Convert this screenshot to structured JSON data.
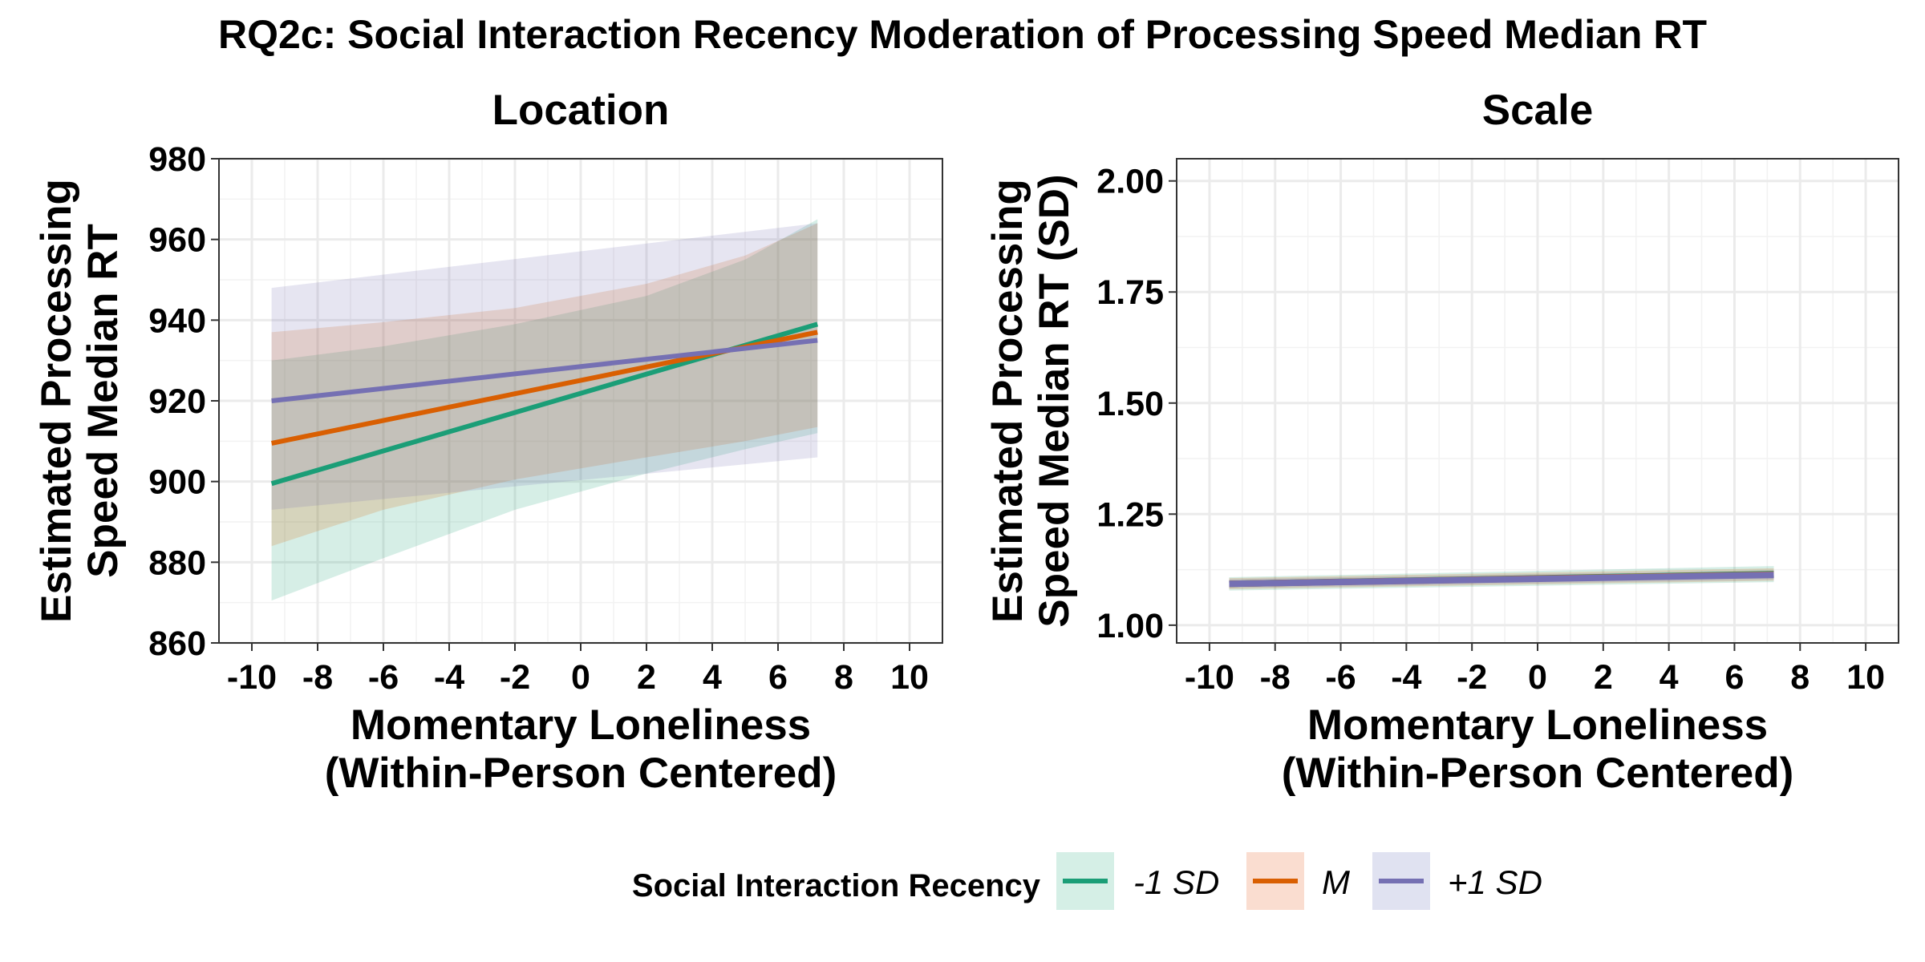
{
  "title": "RQ2c: Social Interaction Recency Moderation of Processing Speed Median RT",
  "legend": {
    "title": "Social Interaction Recency",
    "entries": [
      {
        "label": "-1 SD",
        "color": "#1B9E77",
        "fill": "#D5EFE6"
      },
      {
        "label": "M",
        "color": "#D95F02",
        "fill": "#FADDD0"
      },
      {
        "label": "+1 SD",
        "color": "#7570B3",
        "fill": "#E0E2F1"
      }
    ]
  },
  "chart_data": [
    {
      "type": "line",
      "panel": "Location",
      "title": "Location",
      "xlabel_lines": [
        "Momentary Loneliness",
        "(Within-Person Centered)"
      ],
      "ylabel_lines": [
        "Estimated Processing",
        "Speed Median RT"
      ],
      "xlim": [
        -11,
        11
      ],
      "ylim": [
        860,
        980
      ],
      "x_ticks": [
        -10,
        -8,
        -6,
        -4,
        -2,
        0,
        2,
        4,
        6,
        8,
        10
      ],
      "x_tick_labels": [
        "-10",
        "-8",
        "-6",
        "-4",
        "-2",
        "0",
        "2",
        "4",
        "6",
        "8",
        "10"
      ],
      "y_ticks": [
        860,
        880,
        900,
        920,
        940,
        960,
        980
      ],
      "y_tick_labels": [
        "860",
        "880",
        "900",
        "920",
        "940",
        "960",
        "980"
      ],
      "grid": true,
      "series": [
        {
          "name": "-1 SD",
          "x": [
            -9.4,
            7.2
          ],
          "y": [
            899.5,
            939
          ],
          "ribbon": {
            "x": [
              -9.4,
              -6,
              -2,
              2,
              5,
              7.2
            ],
            "lower": [
              870.5,
              881,
              893,
              902,
              908,
              912
            ],
            "upper": [
              930,
              933.5,
              939,
              946,
              955,
              965
            ]
          }
        },
        {
          "name": "M",
          "x": [
            -9.4,
            7.2
          ],
          "y": [
            909.5,
            937
          ],
          "ribbon": {
            "x": [
              -9.4,
              -6,
              -2,
              2,
              5,
              7.2
            ],
            "lower": [
              884,
              893,
              900.5,
              906,
              910,
              913.5
            ],
            "upper": [
              937,
              939.5,
              943,
              949,
              956,
              964
            ]
          }
        },
        {
          "name": "+1 SD",
          "x": [
            -9.4,
            7.2
          ],
          "y": [
            920,
            935
          ],
          "ribbon": {
            "x": [
              -9.4,
              7.2
            ],
            "lower": [
              893,
              906
            ],
            "upper": [
              948,
              964
            ]
          }
        }
      ]
    },
    {
      "type": "line",
      "panel": "Scale",
      "title": "Scale",
      "xlabel_lines": [
        "Momentary Loneliness",
        "(Within-Person Centered)"
      ],
      "ylabel_lines": [
        "Estimated Processing",
        "Speed Median RT (SD)"
      ],
      "xlim": [
        -11,
        11
      ],
      "ylim": [
        0.96,
        2.05
      ],
      "x_ticks": [
        -10,
        -8,
        -6,
        -4,
        -2,
        0,
        2,
        4,
        6,
        8,
        10
      ],
      "x_tick_labels": [
        "-10",
        "-8",
        "-6",
        "-4",
        "-2",
        "0",
        "2",
        "4",
        "6",
        "8",
        "10"
      ],
      "y_ticks": [
        1.0,
        1.25,
        1.5,
        1.75,
        2.0
      ],
      "y_tick_labels": [
        "1.00",
        "1.25",
        "1.50",
        "1.75",
        "2.00"
      ],
      "grid": true,
      "series": [
        {
          "name": "-1 SD",
          "x": [
            -9.4,
            7.2
          ],
          "y": [
            1.093,
            1.115
          ],
          "ribbon": {
            "x": [
              -9.4,
              7.2
            ],
            "lower": [
              1.078,
              1.097
            ],
            "upper": [
              1.108,
              1.133
            ]
          }
        },
        {
          "name": "M",
          "x": [
            -9.4,
            7.2
          ],
          "y": [
            1.093,
            1.114
          ],
          "ribbon": {
            "x": [
              -9.4,
              7.2
            ],
            "lower": [
              1.081,
              1.1
            ],
            "upper": [
              1.106,
              1.128
            ]
          }
        },
        {
          "name": "+1 SD",
          "x": [
            -9.4,
            7.2
          ],
          "y": [
            1.093,
            1.113
          ],
          "ribbon": {
            "x": [
              -9.4,
              7.2
            ],
            "lower": [
              1.083,
              1.102
            ],
            "upper": [
              1.104,
              1.124
            ]
          }
        }
      ]
    }
  ]
}
